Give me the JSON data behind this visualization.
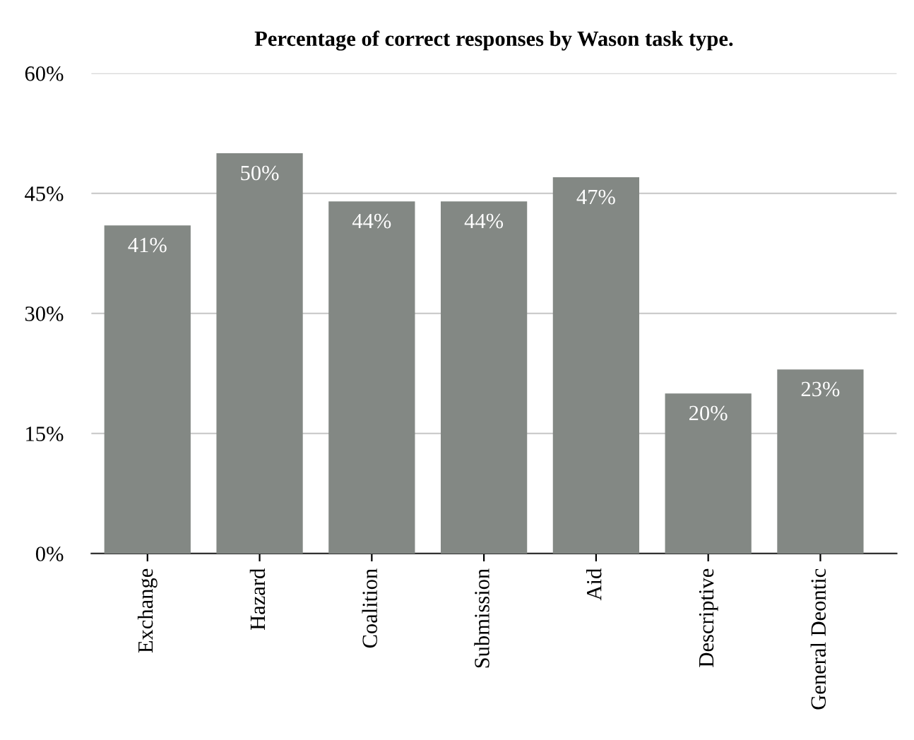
{
  "chart_data": {
    "type": "bar",
    "title": "Percentage of correct responses by Wason task type.",
    "categories": [
      "Exchange",
      "Hazard",
      "Coalition",
      "Submission",
      "Aid",
      "Descriptive",
      "General Deontic"
    ],
    "values": [
      41,
      50,
      44,
      44,
      47,
      20,
      23
    ],
    "value_labels": [
      "41%",
      "50%",
      "44%",
      "44%",
      "47%",
      "20%",
      "23%"
    ],
    "color": "#838884",
    "ylim": [
      0,
      60
    ],
    "yticks": [
      {
        "value": 0,
        "label": "0%"
      },
      {
        "value": 15,
        "label": "15%"
      },
      {
        "value": 30,
        "label": "30%"
      },
      {
        "value": 45,
        "label": "45%"
      },
      {
        "value": 60,
        "label": "60%"
      }
    ],
    "grid": "y"
  }
}
